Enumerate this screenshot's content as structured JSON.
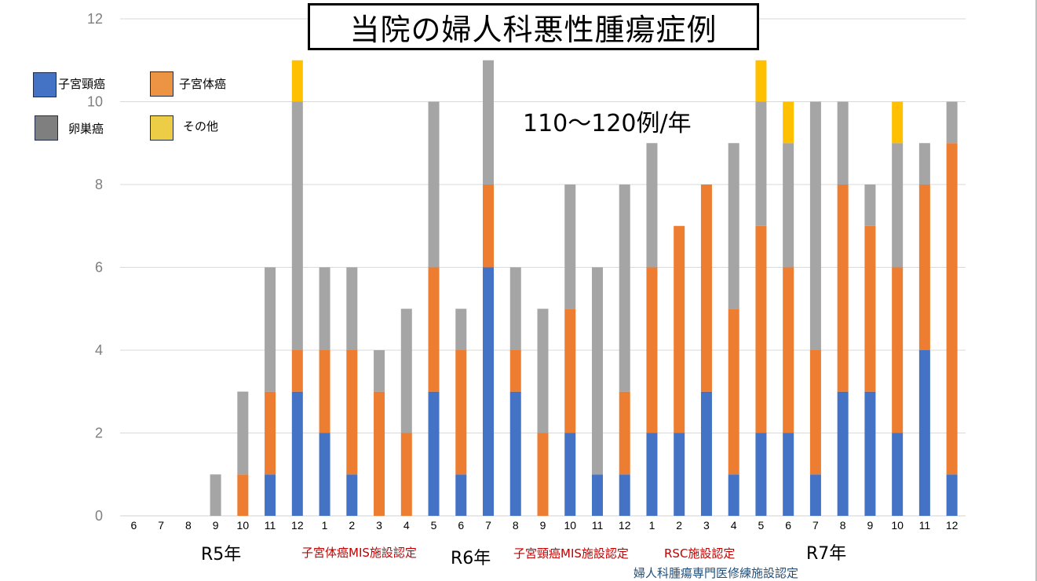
{
  "chart_data": {
    "type": "bar",
    "stacked": true,
    "title": "当院の婦人科悪性腫瘍症例",
    "annotation": "110〜120例/年",
    "xlabel": "",
    "ylabel": "",
    "ylim": [
      0,
      12
    ],
    "yticks": [
      0,
      2,
      4,
      6,
      8,
      10,
      12
    ],
    "grid": true,
    "legend_position": "top-left",
    "categories": [
      "6",
      "7",
      "8",
      "9",
      "10",
      "11",
      "12",
      "1",
      "2",
      "3",
      "4",
      "5",
      "6",
      "7",
      "8",
      "9",
      "10",
      "11",
      "12",
      "1",
      "2",
      "3",
      "4",
      "5",
      "6",
      "7",
      "8",
      "9",
      "10",
      "11",
      "12"
    ],
    "year_groups": [
      {
        "label": "R5年",
        "months": [
          "6",
          "7",
          "8",
          "9",
          "10",
          "11",
          "12"
        ]
      },
      {
        "label": "R6年",
        "months": [
          "1",
          "2",
          "3",
          "4",
          "5",
          "6",
          "7",
          "8",
          "9",
          "10",
          "11",
          "12"
        ]
      },
      {
        "label": "R7年",
        "months": [
          "1",
          "2",
          "3",
          "4",
          "5",
          "6",
          "7",
          "8",
          "9",
          "10",
          "11",
          "12"
        ]
      }
    ],
    "series": [
      {
        "name": "子宮頸癌",
        "color": "#4472C4",
        "values": [
          0,
          0,
          0,
          0,
          0,
          1,
          3,
          2,
          1,
          0,
          0,
          3,
          1,
          6,
          3,
          0,
          2,
          1,
          1,
          2,
          2,
          3,
          1,
          2,
          2,
          1,
          3,
          3,
          2,
          4,
          1
        ]
      },
      {
        "name": "子宮体癌",
        "color": "#ED7D31",
        "values": [
          0,
          0,
          0,
          0,
          1,
          2,
          1,
          2,
          3,
          3,
          2,
          3,
          3,
          2,
          1,
          2,
          3,
          0,
          2,
          4,
          5,
          5,
          4,
          5,
          4,
          3,
          5,
          4,
          4,
          4,
          8
        ]
      },
      {
        "name": "卵巣癌",
        "color": "#A5A5A5",
        "values": [
          0,
          0,
          0,
          1,
          2,
          3,
          6,
          2,
          2,
          1,
          3,
          4,
          1,
          3,
          2,
          3,
          3,
          5,
          5,
          3,
          0,
          0,
          4,
          3,
          3,
          6,
          2,
          1,
          3,
          1,
          1
        ]
      },
      {
        "name": "その他",
        "color": "#FFC000",
        "values": [
          0,
          0,
          0,
          0,
          0,
          0,
          1,
          0,
          0,
          0,
          0,
          0,
          0,
          0,
          0,
          0,
          0,
          0,
          0,
          0,
          0,
          0,
          0,
          1,
          1,
          0,
          0,
          0,
          1,
          0,
          0
        ]
      }
    ],
    "notes": [
      {
        "text": "子宮体癌MIS施設認定",
        "color": "#C00000"
      },
      {
        "text": "子宮頸癌MIS施設認定",
        "color": "#C00000"
      },
      {
        "text": "RSC施設認定",
        "color": "#C00000"
      },
      {
        "text": "婦人科腫瘍専門医修練施設認定",
        "color": "#1F4E79"
      }
    ]
  },
  "legend": {
    "items": [
      {
        "label": "子宮頸癌",
        "color": "#4472C4"
      },
      {
        "label": "子宮体癌",
        "color": "#ED9344"
      },
      {
        "label": "卵巣癌",
        "color": "#7F7F7F"
      },
      {
        "label": "その他",
        "color": "#ECCD45"
      }
    ]
  }
}
